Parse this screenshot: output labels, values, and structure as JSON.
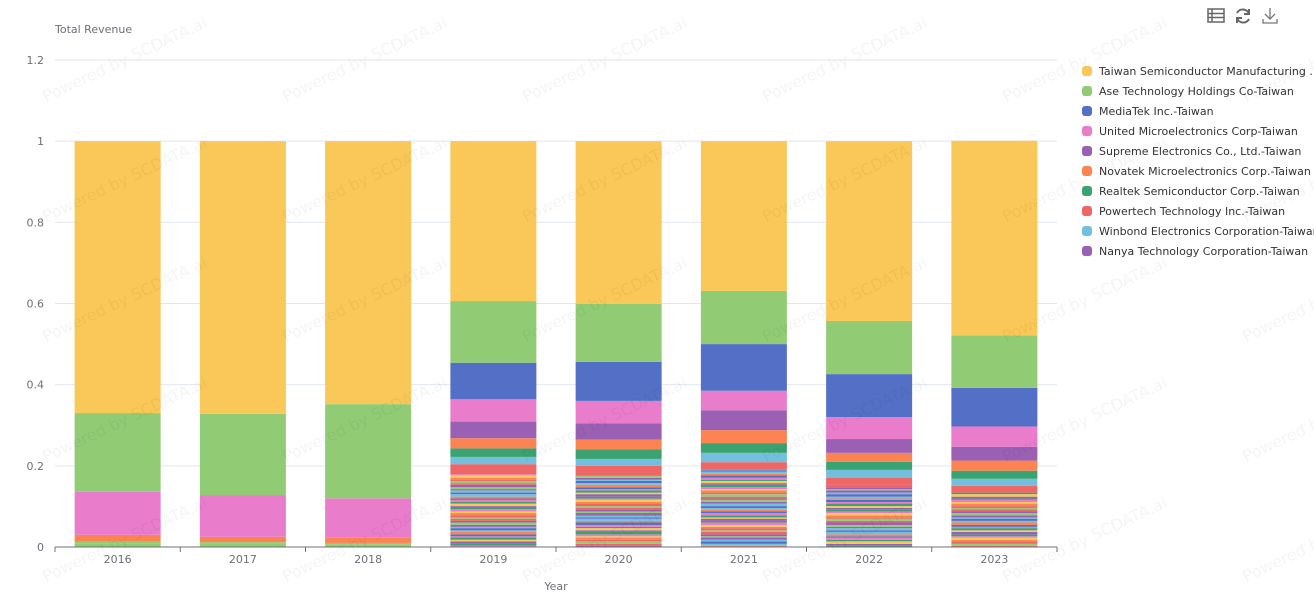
{
  "toolbar": {
    "icons": [
      "data-view-icon",
      "refresh-icon",
      "download-icon"
    ]
  },
  "watermark": "Powered by SCDATA.ai",
  "chart_data": {
    "type": "bar",
    "stacked": true,
    "ylabel": "Total Revenue",
    "xlabel": "Year",
    "ylim": [
      0,
      1.2
    ],
    "yticks": [
      "0",
      "0.2",
      "0.4",
      "0.6",
      "0.8",
      "1",
      "1.2"
    ],
    "grid": true,
    "legend_position": "right",
    "categories": [
      "2016",
      "2017",
      "2018",
      "2019",
      "2020",
      "2021",
      "2022",
      "2023"
    ],
    "series": [
      {
        "name": "Taiwan Semiconductor Manufacturing ...",
        "color": "#fac858",
        "values": [
          0.67,
          0.672,
          0.648,
          0.394,
          0.401,
          0.369,
          0.443,
          0.48
        ]
      },
      {
        "name": "Ase Technology Holdings Co-Taiwan",
        "color": "#91cc75",
        "values": [
          0.194,
          0.2,
          0.232,
          0.152,
          0.143,
          0.131,
          0.131,
          0.129
        ]
      },
      {
        "name": "MediaTek Inc.-Taiwan",
        "color": "#5470c6",
        "values": [
          0,
          0,
          0,
          0.09,
          0.096,
          0.115,
          0.106,
          0.095
        ]
      },
      {
        "name": "United Microelectronics Corp-Taiwan",
        "color": "#ea7ccc",
        "values": [
          0.106,
          0.103,
          0.096,
          0.055,
          0.055,
          0.048,
          0.054,
          0.05
        ]
      },
      {
        "name": "Supreme Electronics Co., Ltd.-Taiwan",
        "color": "#9a60b4",
        "values": [
          0,
          0,
          0,
          0.041,
          0.04,
          0.049,
          0.034,
          0.034
        ]
      },
      {
        "name": "Novatek Microelectronics Corp.-Taiwan",
        "color": "#fc8452",
        "values": [
          0.017,
          0.013,
          0.014,
          0.025,
          0.024,
          0.032,
          0.022,
          0.025
        ]
      },
      {
        "name": "Realtek Semiconductor Corp.-Taiwan",
        "color": "#3ba272",
        "values": [
          0,
          0,
          0,
          0.021,
          0.024,
          0.024,
          0.02,
          0.02
        ]
      },
      {
        "name": "Powertech Technology Inc.-Taiwan",
        "color": "#ee6666",
        "values": [
          0,
          0,
          0,
          0.025,
          0.023,
          0.019,
          0.017,
          0.017
        ]
      },
      {
        "name": "Winbond Electronics Corporation-Taiwan",
        "color": "#73c0de",
        "values": [
          0,
          0,
          0,
          0.018,
          0.017,
          0.023,
          0.02,
          0.017
        ]
      },
      {
        "name": "Nanya Technology Corporation-Taiwan",
        "color": "#9a60b4",
        "values": [
          0,
          0,
          0,
          0,
          0,
          0,
          0,
          0
        ]
      }
    ],
    "stack_order_top_down": [
      0,
      1,
      2,
      3,
      4,
      5,
      6,
      8,
      7,
      9
    ],
    "other_companies_total": [
      0.013,
      0.012,
      0.01,
      0.179,
      0.177,
      0.19,
      0.153,
      0.134
    ]
  }
}
